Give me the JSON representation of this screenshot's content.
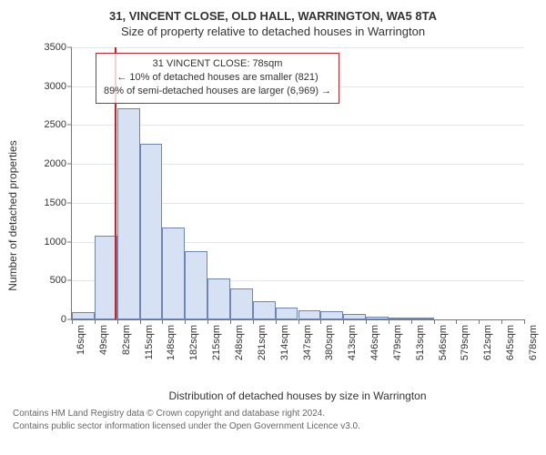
{
  "header": {
    "line1": "31, VINCENT CLOSE, OLD HALL, WARRINGTON, WA5 8TA",
    "line2": "Size of property relative to detached houses in Warrington"
  },
  "chart": {
    "type": "histogram",
    "ylabel": "Number of detached properties",
    "xlabel": "Distribution of detached houses by size in Warrington",
    "ylim": [
      0,
      3500
    ],
    "ytick_step": 500,
    "yticks": [
      0,
      500,
      1000,
      1500,
      2000,
      2500,
      3000,
      3500
    ],
    "bar_fill": "#d6e2f3",
    "bar_stroke": "#6f86b5",
    "bar_stroke_width": 1,
    "grid_color": "#e5e5e5",
    "axis_color": "#777777",
    "background_color": "#ffffff",
    "font_family": "Arial",
    "tick_fontsize": 11,
    "label_fontsize": 12,
    "title_fontsize": 13,
    "ref_line_color": "#d81e1e",
    "ref_line_value_sqm": 78,
    "x_tick_labels": [
      "16sqm",
      "49sqm",
      "82sqm",
      "115sqm",
      "148sqm",
      "182sqm",
      "215sqm",
      "248sqm",
      "281sqm",
      "314sqm",
      "347sqm",
      "380sqm",
      "413sqm",
      "446sqm",
      "479sqm",
      "513sqm",
      "546sqm",
      "579sqm",
      "612sqm",
      "645sqm",
      "678sqm"
    ],
    "bin_width_sqm": 33,
    "bins_start_sqm": [
      16,
      49,
      82,
      115,
      148,
      182,
      215,
      248,
      281,
      314,
      347,
      380,
      413,
      446,
      479,
      513,
      546,
      579,
      612,
      645
    ],
    "counts": [
      90,
      1080,
      2720,
      2260,
      1180,
      880,
      530,
      400,
      230,
      150,
      120,
      100,
      70,
      40,
      5,
      2,
      0,
      0,
      0,
      0
    ],
    "annotation": {
      "line1": "31 VINCENT CLOSE: 78sqm",
      "line2": "← 10% of detached houses are smaller (821)",
      "line3": "89% of semi-detached houses are larger (6,969) →",
      "border_color": "#d81e1e",
      "bg_color": "rgba(255,255,255,0.80)",
      "fontsize": 11
    }
  },
  "footer": {
    "line1": "Contains HM Land Registry data © Crown copyright and database right 2024.",
    "line2": "Contains public sector information licensed under the Open Government Licence v3.0."
  }
}
